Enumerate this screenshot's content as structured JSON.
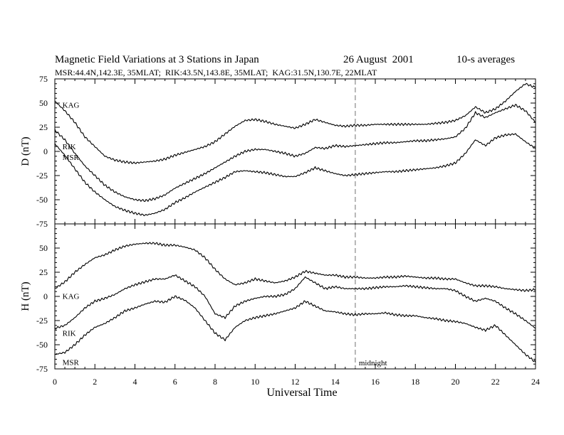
{
  "chart_data": {
    "type": "line",
    "title": "Magnetic Field Variations at 3 Stations in Japan",
    "date": "26 August  2001",
    "note": "10-s averages",
    "subtitle": "MSR:44.4N,142.3E, 35MLAT;  RIK:43.5N,143.8E, 35MLAT;  KAG:31.5N,130.7E, 22MLAT",
    "xlabel": "Universal Time",
    "xlim": [
      0,
      24
    ],
    "xticks": [
      0,
      2,
      4,
      6,
      8,
      10,
      12,
      14,
      16,
      18,
      20,
      22,
      24
    ],
    "midnight": {
      "x": 15,
      "label": "midnight"
    },
    "panels": [
      {
        "ylabel": "D (nT)",
        "ylim": [
          -75,
          75
        ],
        "yticks": [
          75,
          50,
          25,
          0,
          -25,
          -50,
          -75
        ],
        "series": [
          {
            "name": "KAG",
            "label_pos": [
              0.2,
              48
            ],
            "x": [
              0,
              0.5,
              1,
              1.5,
              2,
              2.5,
              3,
              3.5,
              4,
              4.5,
              5,
              5.5,
              6,
              6.5,
              7,
              7.5,
              8,
              8.5,
              9,
              9.5,
              10,
              10.5,
              11,
              11.5,
              12,
              12.5,
              13,
              13.5,
              14,
              14.5,
              15,
              15.5,
              16,
              16.5,
              17,
              17.5,
              18,
              18.5,
              19,
              19.5,
              20,
              20.5,
              21,
              21.5,
              22,
              22.5,
              23,
              23.5,
              24
            ],
            "values": [
              52,
              42,
              30,
              15,
              5,
              -5,
              -9,
              -11,
              -12,
              -11,
              -10,
              -8,
              -4,
              -1,
              2,
              5,
              10,
              18,
              26,
              32,
              33,
              31,
              28,
              26,
              24,
              28,
              33,
              30,
              27,
              26,
              27,
              27,
              28,
              28,
              28,
              28,
              28,
              28,
              29,
              30,
              32,
              37,
              46,
              40,
              44,
              52,
              62,
              70,
              66
            ]
          },
          {
            "name": "RIK",
            "label_pos": [
              0.2,
              5
            ],
            "x": [
              0,
              0.5,
              1,
              1.5,
              2,
              2.5,
              3,
              3.5,
              4,
              4.5,
              5,
              5.5,
              6,
              6.5,
              7,
              7.5,
              8,
              8.5,
              9,
              9.5,
              10,
              10.5,
              11,
              11.5,
              12,
              12.5,
              13,
              13.5,
              14,
              14.5,
              15,
              15.5,
              16,
              16.5,
              17,
              17.5,
              18,
              18.5,
              19,
              19.5,
              20,
              20.5,
              21,
              21.5,
              22,
              22.5,
              23,
              23.5,
              24
            ],
            "values": [
              22,
              12,
              -2,
              -15,
              -25,
              -35,
              -42,
              -47,
              -50,
              -51,
              -49,
              -45,
              -38,
              -33,
              -28,
              -23,
              -17,
              -11,
              -5,
              0,
              2,
              2,
              0,
              -2,
              -5,
              -2,
              4,
              3,
              6,
              5,
              6,
              7,
              8,
              9,
              9,
              10,
              11,
              11,
              12,
              13,
              15,
              24,
              40,
              35,
              40,
              44,
              48,
              42,
              30
            ]
          },
          {
            "name": "MSR",
            "label_pos": [
              0.2,
              -6
            ],
            "x": [
              0,
              0.5,
              1,
              1.5,
              2,
              2.5,
              3,
              3.5,
              4,
              4.5,
              5,
              5.5,
              6,
              6.5,
              7,
              7.5,
              8,
              8.5,
              9,
              9.5,
              10,
              10.5,
              11,
              11.5,
              12,
              12.5,
              13,
              13.5,
              14,
              14.5,
              15,
              15.5,
              16,
              16.5,
              17,
              17.5,
              18,
              18.5,
              19,
              19.5,
              20,
              20.5,
              21,
              21.5,
              22,
              22.5,
              23,
              23.5,
              24
            ],
            "values": [
              8,
              -4,
              -18,
              -32,
              -42,
              -50,
              -57,
              -61,
              -64,
              -66,
              -64,
              -60,
              -53,
              -48,
              -42,
              -37,
              -32,
              -27,
              -21,
              -20,
              -21,
              -22,
              -24,
              -26,
              -26,
              -22,
              -17,
              -20,
              -23,
              -25,
              -24,
              -23,
              -22,
              -21,
              -21,
              -20,
              -19,
              -18,
              -17,
              -15,
              -12,
              -2,
              12,
              6,
              14,
              17,
              18,
              10,
              3
            ]
          }
        ]
      },
      {
        "ylabel": "H (nT)",
        "ylim": [
          -75,
          75
        ],
        "yticks": [
          75,
          50,
          25,
          0,
          -25,
          -50,
          -75
        ],
        "series": [
          {
            "name": "KAG",
            "label_pos": [
              0.2,
              0.5
            ],
            "x": [
              0,
              0.5,
              1,
              1.5,
              2,
              2.5,
              3,
              3.5,
              4,
              4.5,
              5,
              5.5,
              6,
              6.5,
              7,
              7.5,
              8,
              8.5,
              9,
              9.5,
              10,
              10.5,
              11,
              11.5,
              12,
              12.5,
              13,
              13.5,
              14,
              14.5,
              15,
              15.5,
              16,
              16.5,
              17,
              17.5,
              18,
              18.5,
              19,
              19.5,
              20,
              20.5,
              21,
              21.5,
              22,
              22.5,
              23,
              23.5,
              24
            ],
            "values": [
              8,
              15,
              25,
              33,
              40,
              43,
              48,
              52,
              54,
              55,
              55,
              53,
              53,
              51,
              48,
              40,
              28,
              18,
              12,
              14,
              18,
              16,
              14,
              16,
              20,
              26,
              24,
              22,
              22,
              20,
              20,
              19,
              19,
              20,
              20,
              21,
              20,
              19,
              19,
              18,
              18,
              14,
              11,
              11,
              10,
              8,
              7,
              6,
              7
            ]
          },
          {
            "name": "RIK",
            "label_pos": [
              0.2,
              -38
            ],
            "x": [
              0,
              0.5,
              1,
              1.5,
              2,
              2.5,
              3,
              3.5,
              4,
              4.5,
              5,
              5.5,
              6,
              6.5,
              7,
              7.5,
              8,
              8.5,
              9,
              9.5,
              10,
              10.5,
              11,
              11.5,
              12,
              12.5,
              13,
              13.5,
              14,
              14.5,
              15,
              15.5,
              16,
              16.5,
              17,
              17.5,
              18,
              18.5,
              19,
              19.5,
              20,
              20.5,
              21,
              21.5,
              22,
              22.5,
              23,
              23.5,
              24
            ],
            "values": [
              -33,
              -30,
              -22,
              -12,
              -5,
              -2,
              2,
              8,
              12,
              15,
              18,
              18,
              22,
              16,
              10,
              0,
              -18,
              -22,
              -10,
              -5,
              -2,
              0,
              0,
              2,
              8,
              20,
              14,
              8,
              10,
              8,
              8,
              8,
              9,
              10,
              10,
              11,
              10,
              9,
              8,
              8,
              6,
              0,
              -5,
              -2,
              -5,
              -12,
              -18,
              -25,
              -33
            ]
          },
          {
            "name": "MSR",
            "label_pos": [
              0.2,
              -68
            ],
            "x": [
              0,
              0.5,
              1,
              1.5,
              2,
              2.5,
              3,
              3.5,
              4,
              4.5,
              5,
              5.5,
              6,
              6.5,
              7,
              7.5,
              8,
              8.5,
              9,
              9.5,
              10,
              10.5,
              11,
              11.5,
              12,
              12.5,
              13,
              13.5,
              14,
              14.5,
              15,
              15.5,
              16,
              16.5,
              17,
              17.5,
              18,
              18.5,
              19,
              19.5,
              20,
              20.5,
              21,
              21.5,
              22,
              22.5,
              23,
              23.5,
              24
            ],
            "values": [
              -60,
              -58,
              -50,
              -40,
              -32,
              -28,
              -22,
              -15,
              -12,
              -8,
              -5,
              -6,
              0,
              -4,
              -12,
              -25,
              -38,
              -45,
              -32,
              -25,
              -22,
              -20,
              -18,
              -15,
              -12,
              -5,
              -10,
              -15,
              -16,
              -18,
              -19,
              -18,
              -18,
              -17,
              -19,
              -20,
              -20,
              -22,
              -23,
              -25,
              -26,
              -28,
              -32,
              -35,
              -30,
              -40,
              -50,
              -60,
              -68
            ]
          }
        ]
      }
    ]
  }
}
